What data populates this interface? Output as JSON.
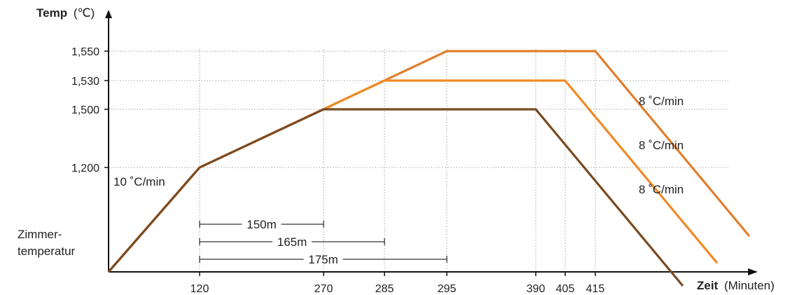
{
  "chart_data": {
    "type": "line",
    "ylabel_bold": "Temp",
    "ylabel_unit": "(℃)",
    "xlabel_bold": "Zeit",
    "xlabel_unit": "(Minuten)",
    "room_temp_label_1": "Zimmer-",
    "room_temp_label_2": "temperatur",
    "x_ticks": [
      "120",
      "270",
      "285",
      "295",
      "390",
      "405",
      "415"
    ],
    "y_ticks": [
      "1,200",
      "1,500",
      "1,530",
      "1,550"
    ],
    "heating_rate_label": "10 ˚C/min",
    "series": [
      {
        "color": "#7a4a22",
        "points": [
          {
            "x": 120,
            "y": 1200
          },
          {
            "x": 270,
            "y": 1500
          },
          {
            "x": 390,
            "y": 1500
          }
        ],
        "cool_rate_label": "8 ˚C/min"
      },
      {
        "color": "#f08a24",
        "points": [
          {
            "x": 120,
            "y": 1200
          },
          {
            "x": 285,
            "y": 1530
          },
          {
            "x": 405,
            "y": 1530
          }
        ],
        "cool_rate_label": "8 ˚C/min"
      },
      {
        "color": "#e07f2c",
        "points": [
          {
            "x": 120,
            "y": 1200
          },
          {
            "x": 295,
            "y": 1550
          },
          {
            "x": 415,
            "y": 1550
          }
        ],
        "cool_rate_label": "8 ˚C/min"
      }
    ],
    "durations": [
      {
        "label": "150m",
        "x_start": 120,
        "x_end": 270
      },
      {
        "label": "165m",
        "x_start": 120,
        "x_end": 285
      },
      {
        "label": "175m",
        "x_start": 120,
        "x_end": 295
      }
    ]
  }
}
